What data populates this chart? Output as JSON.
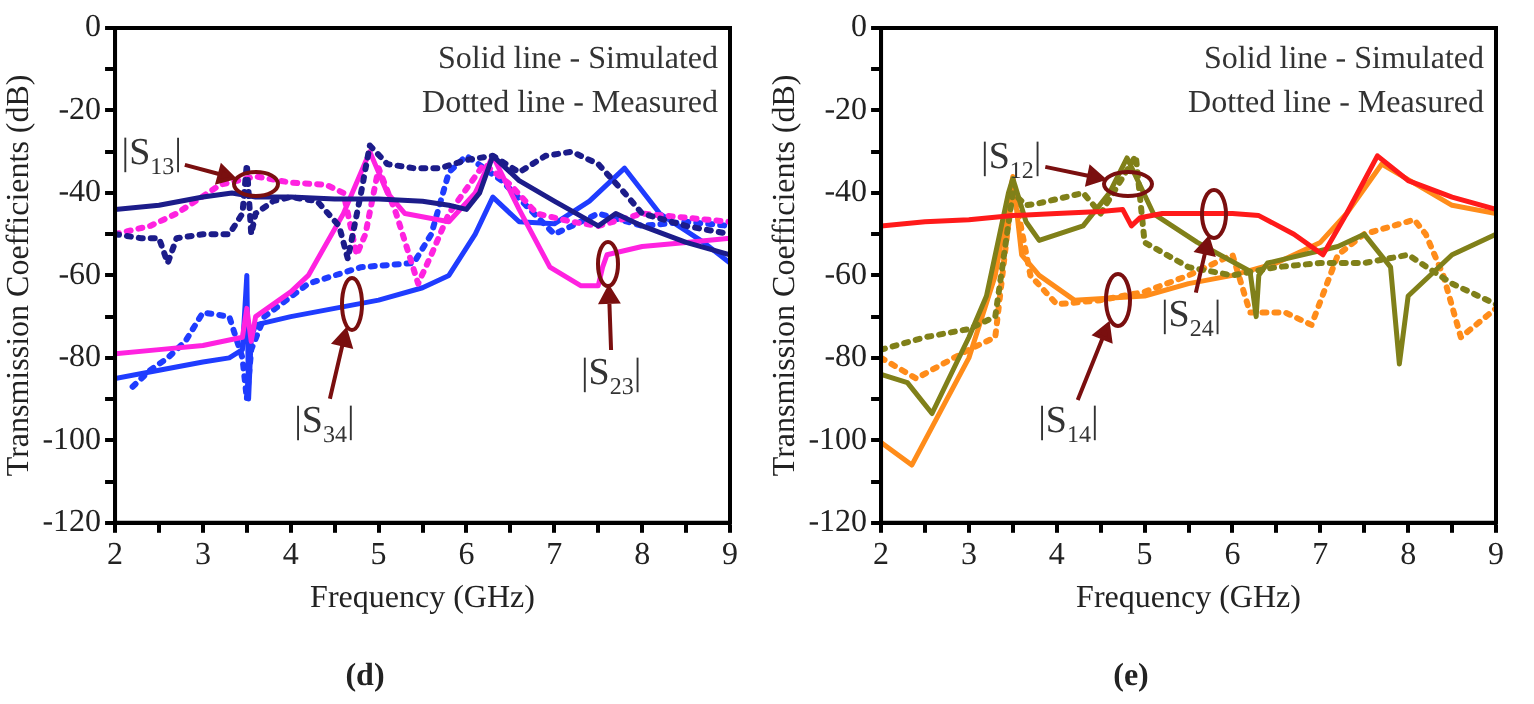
{
  "chart_data": [
    {
      "type": "line",
      "title": "(d)",
      "xlabel": "Frequency (GHz)",
      "ylabel": "Transmission Coefficients (dB)",
      "xlim": [
        2,
        9
      ],
      "ylim": [
        -120,
        0
      ],
      "xticks": [
        2,
        {
          "value": 2.5,
          "label": null
        },
        3,
        {
          "value": 3.5,
          "label": null
        },
        4,
        {
          "value": 4.5,
          "label": null
        },
        5,
        {
          "value": 5.5,
          "label": null
        },
        6,
        {
          "value": 6.5,
          "label": null
        },
        7,
        {
          "value": 7.5,
          "label": null
        },
        8,
        {
          "value": 8.5,
          "label": null
        },
        9
      ],
      "yticks": [
        -120,
        {
          "value": -110,
          "label": null
        },
        -100,
        {
          "value": -90,
          "label": null
        },
        -80,
        {
          "value": -70,
          "label": null
        },
        -60,
        {
          "value": -50,
          "label": null
        },
        -40,
        {
          "value": -30,
          "label": null
        },
        -20,
        {
          "value": -10,
          "label": null
        },
        0
      ],
      "grid": false,
      "legend": false,
      "marker": "none",
      "series": [
        {
          "color": "#1c1c8a",
          "line_style": "solid",
          "x": [
            2,
            2.5,
            3,
            3.33,
            3.6,
            4,
            4.5,
            5,
            5.5,
            5.8,
            6.0,
            6.15,
            6.3,
            6.6,
            7.0,
            7.5,
            7.7,
            8.0,
            8.5,
            9
          ],
          "values": [
            -44,
            -43,
            -41,
            -40,
            -41,
            -41,
            -41.5,
            -41.5,
            -42,
            -43,
            -44,
            -40,
            -31,
            -37,
            -42,
            -48,
            -45,
            -48,
            -52,
            -55
          ]
        },
        {
          "color": "#1c1c8a",
          "line_style": "dotted",
          "x": [
            2,
            2.3,
            2.5,
            2.6,
            2.7,
            3,
            3.3,
            3.45,
            3.5,
            3.55,
            3.6,
            3.8,
            4,
            4.3,
            4.55,
            4.65,
            4.8,
            4.9,
            5.1,
            5.4,
            5.7,
            6.0,
            6.3,
            6.6,
            6.9,
            7.2,
            7.5,
            7.8,
            8.0,
            8.5,
            9
          ],
          "values": [
            -50,
            -51,
            -51,
            -57,
            -51,
            -50,
            -50,
            -45,
            -33,
            -50,
            -45,
            -42,
            -41,
            -42,
            -48,
            -56,
            -40,
            -28.5,
            -33,
            -34,
            -34,
            -32,
            -31,
            -35,
            -31,
            -30,
            -33,
            -40,
            -45,
            -48,
            -50
          ]
        },
        {
          "color": "#ff22e0",
          "line_style": "solid",
          "x": [
            2,
            2.5,
            3,
            3.45,
            3.5,
            3.55,
            3.6,
            4.0,
            4.2,
            4.6,
            4.9,
            5.1,
            5.3,
            5.8,
            6.1,
            6.3,
            6.6,
            6.95,
            7.3,
            7.5,
            7.55,
            7.6,
            8,
            8.5,
            9
          ],
          "values": [
            -79,
            -78,
            -77,
            -75,
            -68,
            -76,
            -70,
            -64,
            -60,
            -45,
            -30,
            -40,
            -45,
            -47,
            -40,
            -31,
            -44,
            -58,
            -62.5,
            -62.5,
            -58,
            -55,
            -53,
            -52,
            -51
          ]
        },
        {
          "color": "#ff22e0",
          "line_style": "dotted",
          "x": [
            2,
            2.4,
            2.7,
            3.2,
            3.6,
            4.0,
            4.4,
            4.6,
            4.75,
            4.85,
            5.0,
            5.2,
            5.45,
            5.6,
            5.8,
            6.2,
            6.5,
            6.8,
            7.2,
            7.5,
            8,
            8.5,
            9
          ],
          "values": [
            -50,
            -48,
            -45,
            -38,
            -36,
            -37.5,
            -38,
            -40,
            -55,
            -50,
            -34,
            -45,
            -62,
            -55,
            -45,
            -33,
            -38,
            -45,
            -47,
            -48,
            -45,
            -46,
            -47
          ]
        },
        {
          "color": "#1f3cff",
          "line_style": "solid",
          "x": [
            2,
            2.5,
            3,
            3.3,
            3.45,
            3.5,
            3.52,
            3.55,
            3.6,
            4,
            4.5,
            5,
            5.5,
            5.8,
            6.1,
            6.3,
            6.6,
            7.0,
            7.4,
            7.8,
            8.2,
            8.7,
            9
          ],
          "values": [
            -85,
            -83,
            -81,
            -80,
            -78,
            -60,
            -90,
            -75,
            -72,
            -70,
            -68,
            -66,
            -63,
            -60,
            -50,
            -41,
            -47,
            -47.5,
            -42,
            -34,
            -45,
            -52,
            -57
          ]
        },
        {
          "color": "#1f3cff",
          "line_style": "dotted",
          "x": [
            2.2,
            2.4,
            2.6,
            2.8,
            3.0,
            3.3,
            3.45,
            3.5,
            3.55,
            3.7,
            4.2,
            4.8,
            5.4,
            5.6,
            5.8,
            6.0,
            6.4,
            7.0,
            7.5,
            8,
            8.5,
            9
          ],
          "values": [
            -87,
            -83,
            -80,
            -76,
            -69,
            -70,
            -80,
            -90,
            -78,
            -70,
            -62,
            -58,
            -57,
            -50,
            -35,
            -31,
            -37,
            -50,
            -45,
            -48,
            -47,
            -48
          ]
        }
      ],
      "annotations": [
        "Solid line - Simulated",
        "Dotted line - Measured",
        {
          "text": "|S$_{13}$|",
          "x": 3.6,
          "y": -38
        },
        {
          "text": "|S$_{34}$|",
          "x": 4.7,
          "y": -67
        },
        {
          "text": "|S$_{23}$|",
          "x": 7.6,
          "y": -57
        }
      ]
    },
    {
      "type": "line",
      "title": "(e)",
      "xlabel": "Frequency (GHz)",
      "ylabel": "Transmission Coefficients (dB)",
      "xlim": [
        2,
        9
      ],
      "ylim": [
        -120,
        0
      ],
      "xticks": [
        2,
        {
          "value": 2.5,
          "label": null
        },
        3,
        {
          "value": 3.5,
          "label": null
        },
        4,
        {
          "value": 4.5,
          "label": null
        },
        5,
        {
          "value": 5.5,
          "label": null
        },
        6,
        {
          "value": 6.5,
          "label": null
        },
        7,
        {
          "value": 7.5,
          "label": null
        },
        8,
        {
          "value": 8.5,
          "label": null
        },
        9
      ],
      "yticks": [
        -120,
        {
          "value": -110,
          "label": null
        },
        -100,
        {
          "value": -90,
          "label": null
        },
        -80,
        {
          "value": -70,
          "label": null
        },
        -60,
        {
          "value": -50,
          "label": null
        },
        -40,
        {
          "value": -30,
          "label": null
        },
        -20,
        {
          "value": -10,
          "label": null
        },
        0
      ],
      "grid": false,
      "legend": false,
      "marker": "none",
      "series": [
        {
          "color": "#ff1a1a",
          "line_style": "solid",
          "x": [
            2,
            2.5,
            3,
            3.5,
            4,
            4.5,
            4.75,
            4.85,
            4.95,
            5.2,
            5.65,
            6.0,
            6.3,
            6.7,
            7.03,
            7.3,
            7.65,
            8.0,
            8.5,
            9
          ],
          "values": [
            -48,
            -47,
            -46.5,
            -45.5,
            -45,
            -44.5,
            -44,
            -48,
            -46,
            -45,
            -45,
            -45,
            -45.5,
            -50,
            -55,
            -45,
            -31,
            -37,
            -41,
            -44
          ]
        },
        {
          "color": "#808019",
          "line_style": "solid",
          "x": [
            2,
            2.3,
            2.58,
            3.0,
            3.2,
            3.45,
            3.5,
            3.65,
            3.8,
            4.3,
            4.6,
            4.8,
            5.1,
            5.6,
            6.2,
            6.27,
            6.3,
            6.4,
            7.2,
            7.5,
            7.8,
            7.9,
            8.0,
            8.5,
            9
          ],
          "values": [
            -84,
            -86,
            -93.5,
            -75,
            -65,
            -40,
            -36.5,
            -47,
            -51.5,
            -48,
            -40,
            -31.5,
            -45,
            -52,
            -59,
            -70,
            -60,
            -57,
            -53,
            -50,
            -58,
            -81.5,
            -65,
            -55,
            -50
          ]
        },
        {
          "color": "#808019",
          "line_style": "dotted",
          "x": [
            2,
            2.5,
            3.0,
            3.3,
            3.5,
            3.65,
            3.8,
            4.3,
            4.5,
            4.9,
            5.0,
            5.5,
            6,
            6.5,
            7,
            7.5,
            8,
            8.5,
            9
          ],
          "values": [
            -78,
            -75,
            -73,
            -70,
            -40,
            -43,
            -42.5,
            -40,
            -45,
            -31,
            -52,
            -58,
            -60,
            -58,
            -57,
            -57,
            -55,
            -62,
            -67
          ]
        },
        {
          "color": "#ff8c1a",
          "line_style": "solid",
          "x": [
            2,
            2.35,
            3.0,
            3.3,
            3.5,
            3.6,
            3.8,
            4.2,
            5.0,
            5.5,
            6,
            6.5,
            7.0,
            7.3,
            7.7,
            8.5,
            9
          ],
          "values": [
            -100.5,
            -106,
            -80,
            -60,
            -36,
            -55,
            -60,
            -66,
            -65,
            -62,
            -60,
            -57,
            -52,
            -45,
            -33,
            -43,
            -45
          ]
        },
        {
          "color": "#ff8c1a",
          "line_style": "dotted",
          "x": [
            2,
            2.4,
            3.0,
            3.3,
            3.5,
            3.7,
            4.0,
            4.5,
            5,
            5.5,
            6.0,
            6.2,
            6.6,
            6.9,
            7.2,
            7.5,
            8.07,
            8.2,
            8.4,
            8.6,
            9
          ],
          "values": [
            -80,
            -85,
            -78,
            -75,
            -38,
            -60,
            -67,
            -66,
            -64,
            -60,
            -55,
            -69,
            -69,
            -72,
            -55,
            -50,
            -46.5,
            -50,
            -60,
            -75,
            -68
          ]
        }
      ],
      "annotations": [
        "Solid line - Simulated",
        "Dotted line - Measured",
        {
          "text": "|S$_{12}$|",
          "x": 4.8,
          "y": -38
        },
        {
          "text": "|S$_{24}$|",
          "x": 5.8,
          "y": -45
        },
        {
          "text": "|S$_{14}$|",
          "x": 4.7,
          "y": -66
        }
      ]
    }
  ]
}
